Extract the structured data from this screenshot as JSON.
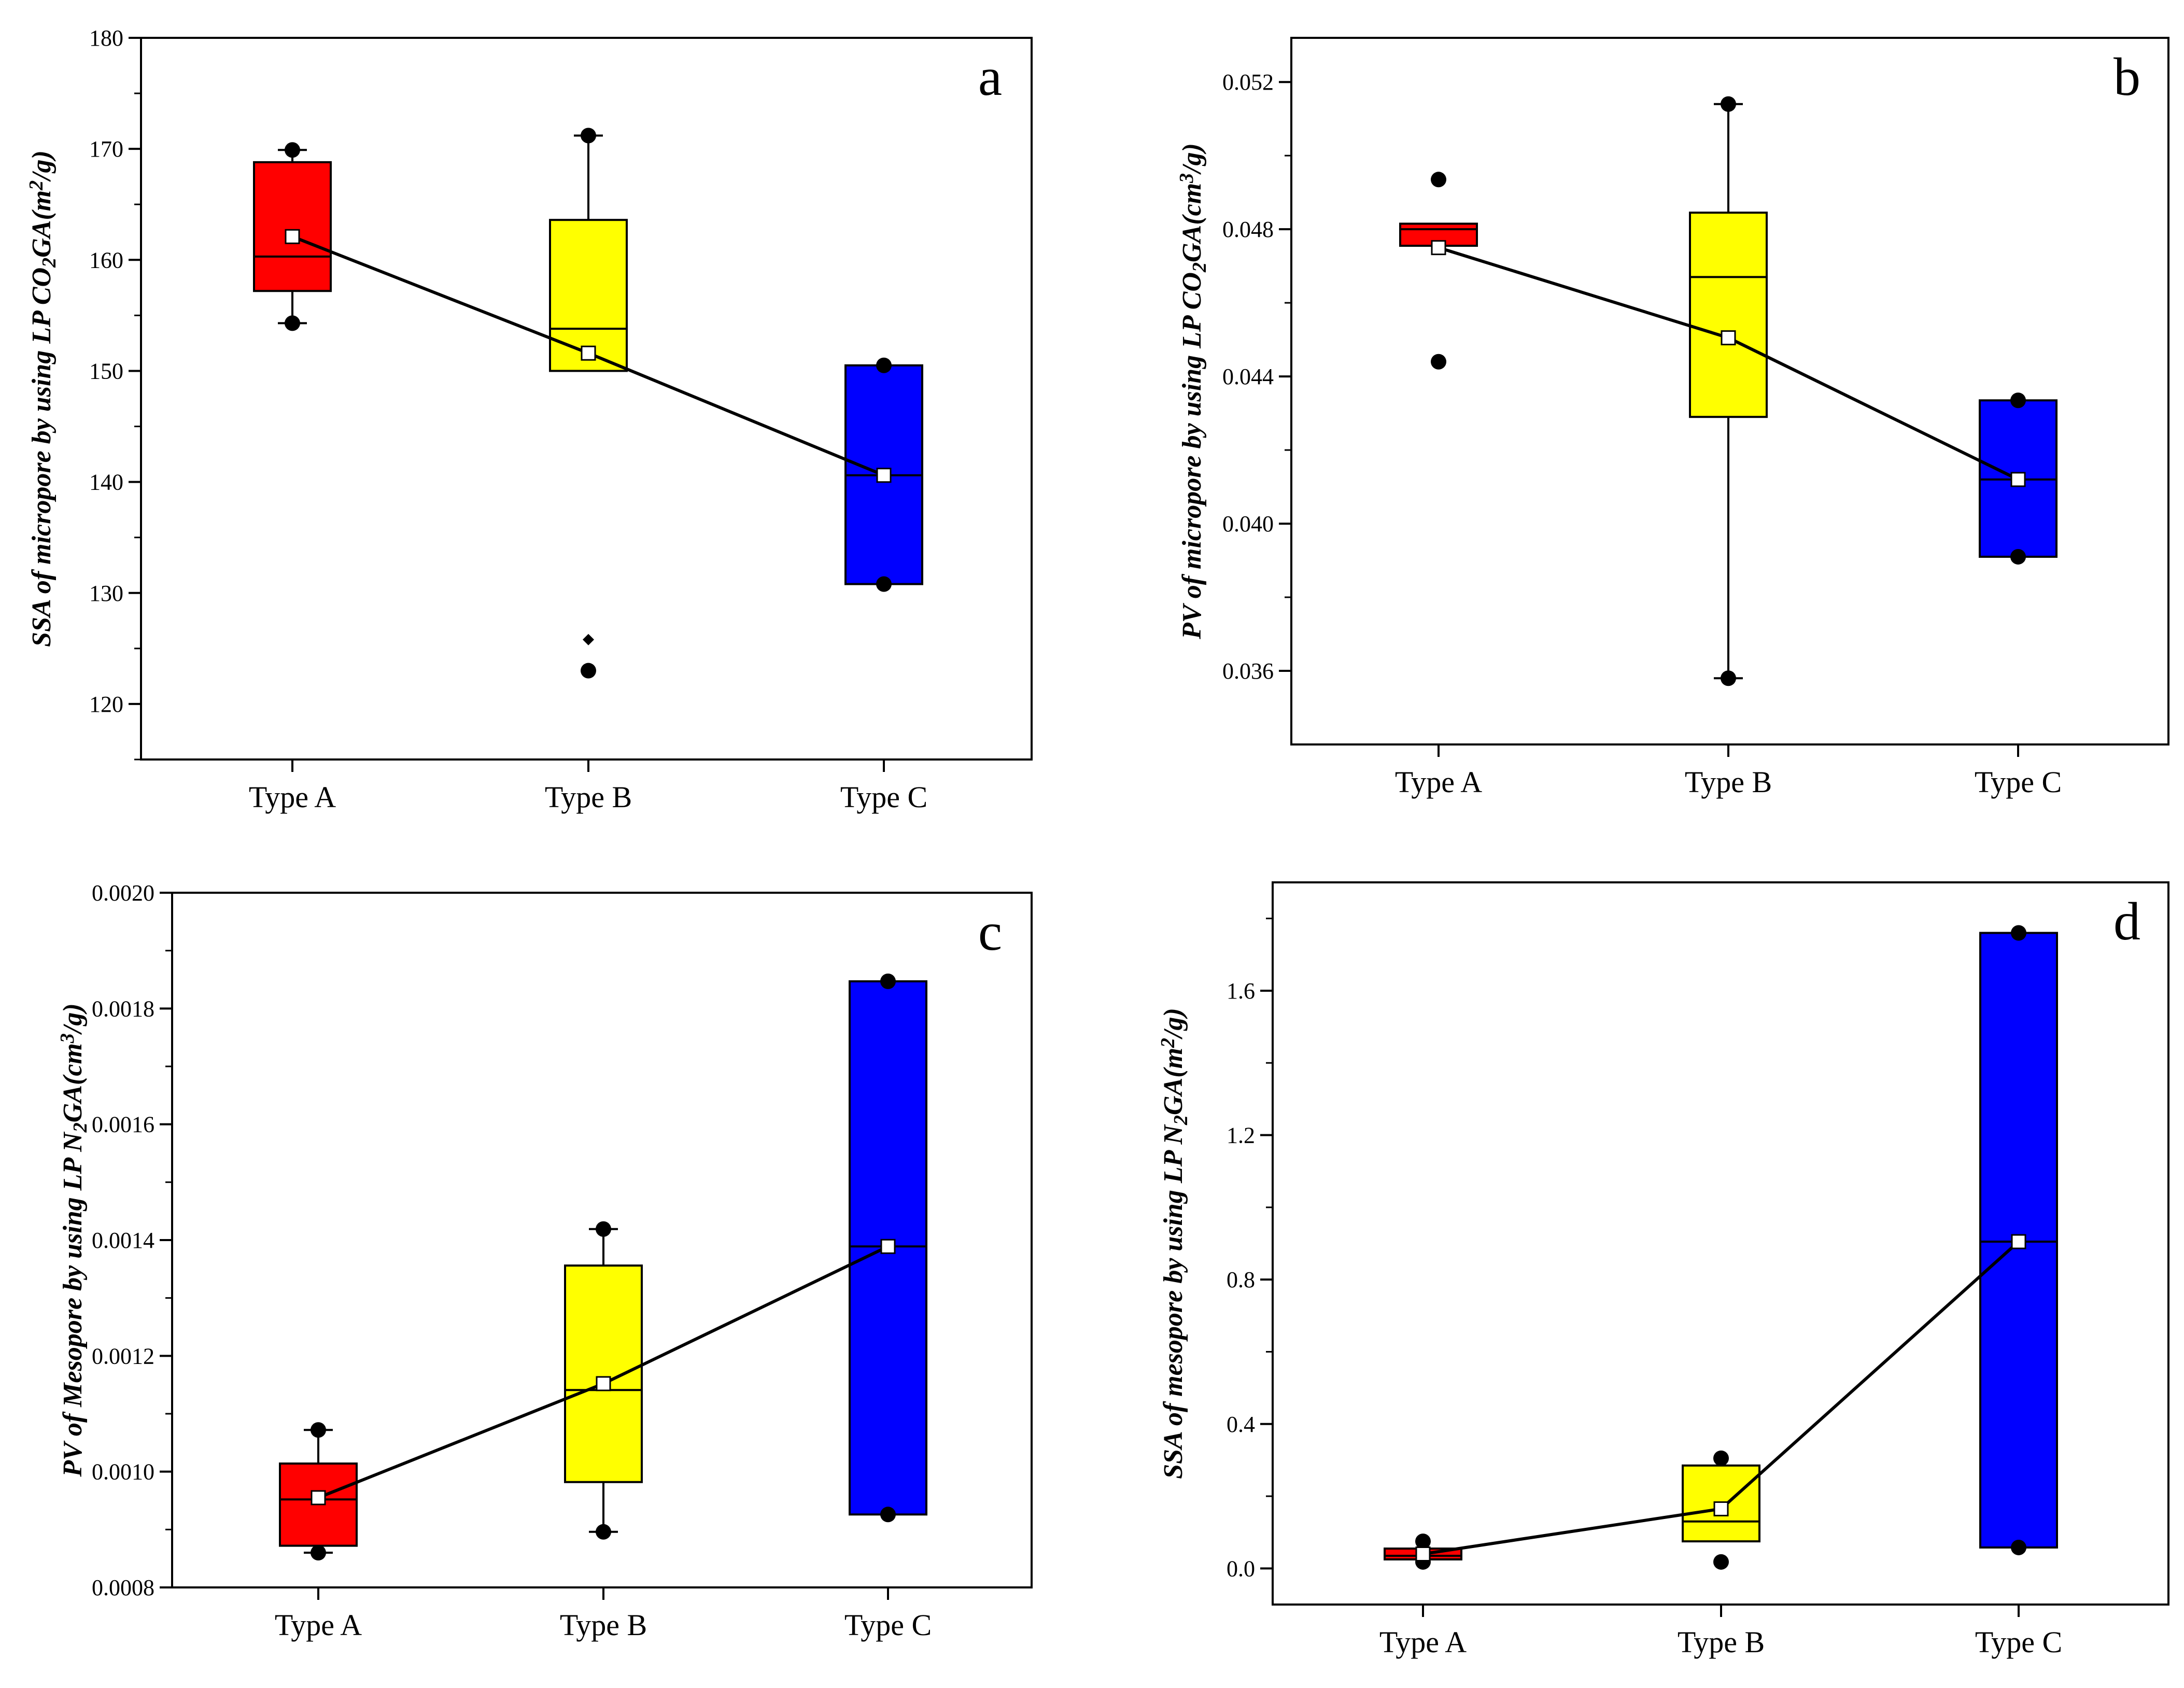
{
  "chart_data": [
    {
      "type": "box",
      "letter": "a",
      "ylabel": {
        "pre": "SSA of micropore by using LP CO",
        "sub1": "2",
        "mid": "GA(m",
        "sup": "2",
        "post": "/g)"
      },
      "ylim": [
        115,
        180
      ],
      "yticks": [
        120,
        130,
        140,
        150,
        160,
        170,
        180
      ],
      "ytick_labels": [
        "120",
        "130",
        "140",
        "150",
        "160",
        "170",
        "180"
      ],
      "categories": [
        "Type A",
        "Type B",
        "Type C"
      ],
      "colors": [
        "#ff0000",
        "#ffff00",
        "#0000ff"
      ],
      "boxes": [
        {
          "q1": 157.2,
          "median": 160.3,
          "q3": 168.8,
          "mean": 162.1,
          "whisker_low": 154.3,
          "whisker_high": 169.9,
          "points": [
            154.3,
            169.9
          ],
          "outliers": []
        },
        {
          "q1": 150.0,
          "median": 153.8,
          "q3": 163.6,
          "mean": 151.6,
          "whisker_low": 150.0,
          "whisker_high": 171.2,
          "points": [
            171.2,
            123.0
          ],
          "outliers": [
            125.8
          ]
        },
        {
          "q1": 130.8,
          "median": 140.6,
          "q3": 150.5,
          "mean": 140.6,
          "whisker_low": 130.8,
          "whisker_high": 150.5,
          "points": [
            130.8,
            150.5
          ],
          "outliers": []
        }
      ]
    },
    {
      "type": "box",
      "letter": "b",
      "ylabel": {
        "pre": "PV of micropore by using LP CO",
        "sub1": "2",
        "mid": "GA(cm",
        "sup": "3",
        "post": "/g)"
      },
      "ylim": [
        0.034,
        0.0532
      ],
      "yticks": [
        0.036,
        0.04,
        0.044,
        0.048,
        0.052
      ],
      "ytick_labels": [
        "0.036",
        "0.040",
        "0.044",
        "0.048",
        "0.052"
      ],
      "categories": [
        "Type A",
        "Type B",
        "Type C"
      ],
      "colors": [
        "#ff0000",
        "#ffff00",
        "#0000ff"
      ],
      "boxes": [
        {
          "q1": 0.04755,
          "median": 0.048,
          "q3": 0.04815,
          "mean": 0.0475,
          "whisker_low": 0.04755,
          "whisker_high": 0.04815,
          "points": [
            0.04935,
            0.0444
          ],
          "outliers": []
        },
        {
          "q1": 0.0429,
          "median": 0.0467,
          "q3": 0.04845,
          "mean": 0.04505,
          "whisker_low": 0.0358,
          "whisker_high": 0.0514,
          "points": [
            0.0358,
            0.0514
          ],
          "outliers": []
        },
        {
          "q1": 0.0391,
          "median": 0.0412,
          "q3": 0.04335,
          "mean": 0.0412,
          "whisker_low": 0.0391,
          "whisker_high": 0.04335,
          "points": [
            0.0391,
            0.04335
          ],
          "outliers": []
        }
      ]
    },
    {
      "type": "box",
      "letter": "c",
      "ylabel": {
        "pre": "PV of Mesopore by using LP N",
        "sub1": "2",
        "mid": "GA(cm",
        "sup": "3",
        "post": "/g)"
      },
      "ylim": [
        0.0008,
        0.002
      ],
      "yticks": [
        0.0008,
        0.001,
        0.0012,
        0.0014,
        0.0016,
        0.0018,
        0.002
      ],
      "ytick_labels": [
        "0.0008",
        "0.0010",
        "0.0012",
        "0.0014",
        "0.0016",
        "0.0018",
        "0.0020"
      ],
      "categories": [
        "Type A",
        "Type B",
        "Type C"
      ],
      "colors": [
        "#ff0000",
        "#ffff00",
        "#0000ff"
      ],
      "boxes": [
        {
          "q1": 0.000872,
          "median": 0.000952,
          "q3": 0.001014,
          "mean": 0.000955,
          "whisker_low": 0.00086,
          "whisker_high": 0.001072,
          "points": [
            0.00086,
            0.001072
          ],
          "outliers": []
        },
        {
          "q1": 0.000982,
          "median": 0.001141,
          "q3": 0.001356,
          "mean": 0.001152,
          "whisker_low": 0.000896,
          "whisker_high": 0.001419,
          "points": [
            0.000896,
            0.001419
          ],
          "outliers": []
        },
        {
          "q1": 0.000926,
          "median": 0.001389,
          "q3": 0.001847,
          "mean": 0.001389,
          "whisker_low": 0.000926,
          "whisker_high": 0.001847,
          "points": [
            0.000926,
            0.001847
          ],
          "outliers": []
        }
      ]
    },
    {
      "type": "box",
      "letter": "d",
      "ylabel": {
        "pre": "SSA of mesopore by using LP N",
        "sub1": "2",
        "mid": "GA(m",
        "sup": "2",
        "post": "/g)"
      },
      "ylim": [
        -0.1,
        1.9
      ],
      "yticks": [
        0.0,
        0.4,
        0.8,
        1.2,
        1.6
      ],
      "ytick_labels": [
        "0.0",
        "0.4",
        "0.8",
        "1.2",
        "1.6"
      ],
      "categories": [
        "Type A",
        "Type B",
        "Type C"
      ],
      "colors": [
        "#ff0000",
        "#ffff00",
        "#0000ff"
      ],
      "boxes": [
        {
          "q1": 0.025,
          "median": 0.035,
          "q3": 0.055,
          "mean": 0.04,
          "whisker_low": 0.025,
          "whisker_high": 0.055,
          "points": [
            0.075,
            0.018
          ],
          "outliers": []
        },
        {
          "q1": 0.075,
          "median": 0.13,
          "q3": 0.285,
          "mean": 0.165,
          "whisker_low": 0.075,
          "whisker_high": 0.285,
          "points": [
            0.305,
            0.018
          ],
          "outliers": []
        },
        {
          "q1": 0.058,
          "median": 0.905,
          "q3": 1.76,
          "mean": 0.905,
          "whisker_low": 0.058,
          "whisker_high": 1.76,
          "points": [
            1.76,
            0.058
          ],
          "outliers": []
        }
      ]
    }
  ]
}
